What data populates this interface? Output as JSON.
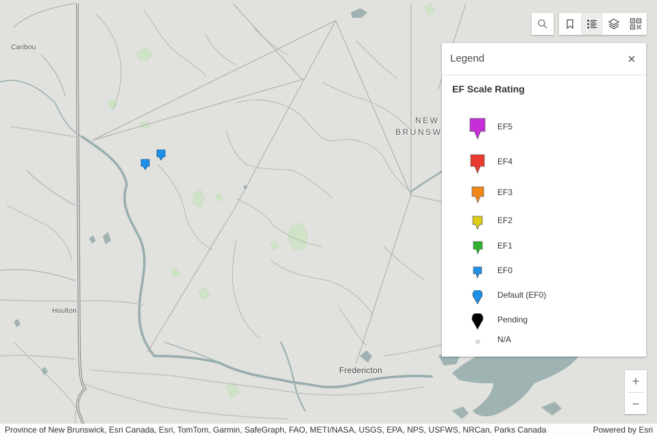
{
  "map": {
    "place_labels": {
      "caribou": "Caribou",
      "houlton": "Houlton",
      "fredericton": "Fredericton",
      "province_line1": "NEW",
      "province_line2": "BRUNSW"
    },
    "markers": [
      {
        "rating": "EF0",
        "color": "#1e8fe6"
      },
      {
        "rating": "EF0",
        "color": "#1e8fe6"
      }
    ],
    "colors": {
      "land": "#e1e1de",
      "water": "#9fb3b3",
      "park": "#cfe3c6",
      "road": "#ababab",
      "highway": "#8e8e8e"
    }
  },
  "toolbar": {
    "search_icon": "search-icon",
    "bookmark_icon": "bookmark-icon",
    "legend_icon": "legend-list-icon",
    "layers_icon": "layers-icon",
    "qr_icon": "qr-code-icon"
  },
  "legend": {
    "title": "Legend",
    "close_icon": "close-icon",
    "subtitle": "EF Scale Rating",
    "items": [
      {
        "label": "EF5",
        "color": "#c62fd8",
        "shape": "square-pin"
      },
      {
        "label": "EF4",
        "color": "#ea3a2f",
        "shape": "square-pin"
      },
      {
        "label": "EF3",
        "color": "#f28818",
        "shape": "square-pin"
      },
      {
        "label": "EF2",
        "color": "#dccc16",
        "shape": "square-pin"
      },
      {
        "label": "EF1",
        "color": "#2fb32f",
        "shape": "square-pin"
      },
      {
        "label": "EF0",
        "color": "#1e8fe6",
        "shape": "square-pin"
      },
      {
        "label": "Default (EF0)",
        "color": "#1e8fe6",
        "shape": "round-pin"
      },
      {
        "label": "Pending",
        "color": "#000000",
        "shape": "round-pin"
      },
      {
        "label": "N/A",
        "color": "#d9d9d9",
        "shape": "dot"
      }
    ]
  },
  "zoom": {
    "in_label": "+",
    "out_label": "−"
  },
  "attribution": {
    "text": "Province of New Brunswick, Esri Canada, Esri, TomTom, Garmin, SafeGraph, FAO, METI/NASA, USGS, EPA, NPS, USFWS, NRCan, Parks Canada",
    "powered_by": "Powered by Esri"
  }
}
